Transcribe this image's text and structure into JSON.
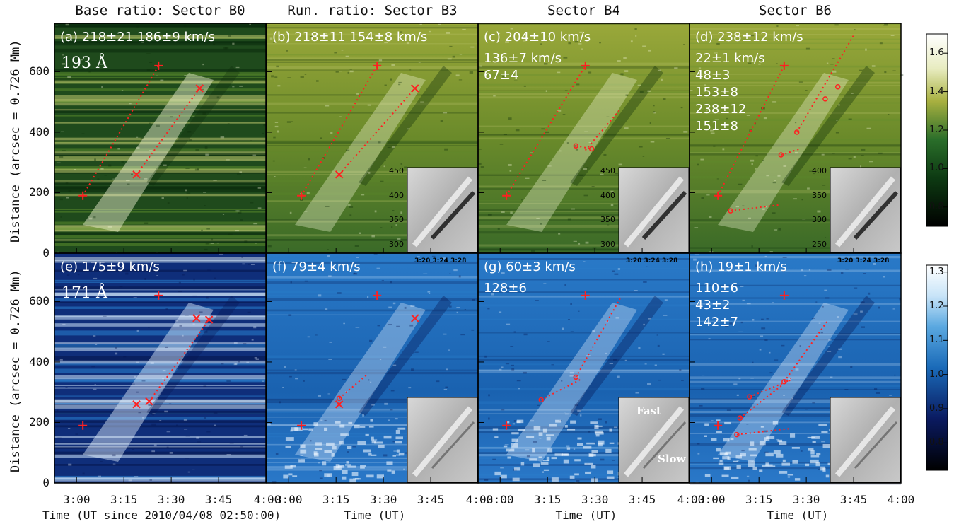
{
  "column_titles": [
    "Base ratio: Sector B0",
    "Run. ratio: Sector B3",
    "Sector B4",
    "Sector B6"
  ],
  "rows": [
    {
      "wavelength": "193 Å",
      "panels": [
        {
          "label": "(a)",
          "lines": [
            "218±21 186±9 km/s"
          ]
        },
        {
          "label": "(b)",
          "lines": [
            "218±11 154±8 km/s"
          ]
        },
        {
          "label": "(c)",
          "lines": [
            "204±10 km/s",
            "136±7 km/s",
            "67±4"
          ]
        },
        {
          "label": "(d)",
          "lines": [
            "238±12 km/s",
            "22±1 km/s",
            "48±3",
            "153±8",
            "238±12",
            "151±8"
          ]
        }
      ]
    },
    {
      "wavelength": "171 Å",
      "panels": [
        {
          "label": "(e)",
          "lines": [
            "175±9 km/s"
          ]
        },
        {
          "label": "(f)",
          "lines": [
            "79±4 km/s"
          ]
        },
        {
          "label": "(g)",
          "lines": [
            "60±3 km/s",
            "128±6"
          ]
        },
        {
          "label": "(h)",
          "lines": [
            "19±1 km/s",
            "110±6",
            "43±2",
            "142±7"
          ]
        }
      ]
    }
  ],
  "inset_time_labels": "3:20 3:24 3:28",
  "inset_text": {
    "fast": "Fast",
    "slow": "Slow"
  },
  "inset_yticks": {
    "b": [
      "450",
      "400",
      "350",
      "300"
    ],
    "c": [
      "450",
      "400",
      "350",
      "300"
    ],
    "d": [
      "400",
      "350",
      "300",
      "250"
    ]
  },
  "colors": {
    "row1_accent": "#c8d060",
    "row2_accent": "#3a8ad8",
    "marker": "#ff2020"
  },
  "chart_data": {
    "type": "heatmap",
    "ylabel": "Distance (arcsec = 0.726 Mm)",
    "ylim": [
      0,
      760
    ],
    "yticks": [
      "0",
      "200",
      "400",
      "600"
    ],
    "xlim": [
      "2:53",
      "4:00"
    ],
    "xticks": [
      "3:00",
      "3:15",
      "3:30",
      "3:45",
      "4:00"
    ],
    "xlabel_first": "Time (UT since 2010/04/08 02:50:00)",
    "xlabel_other": "Time (UT)",
    "colorbars": [
      {
        "row": "193 Å",
        "range": [
          0.7,
          1.7
        ],
        "ticks": [
          "0.8",
          "1.0",
          "1.2",
          "1.4",
          "1.6"
        ]
      },
      {
        "row": "171 Å",
        "range": [
          0.72,
          1.32
        ],
        "ticks": [
          "0.8",
          "0.9",
          "1.0",
          "1.1",
          "1.2",
          "1.3"
        ]
      }
    ]
  }
}
